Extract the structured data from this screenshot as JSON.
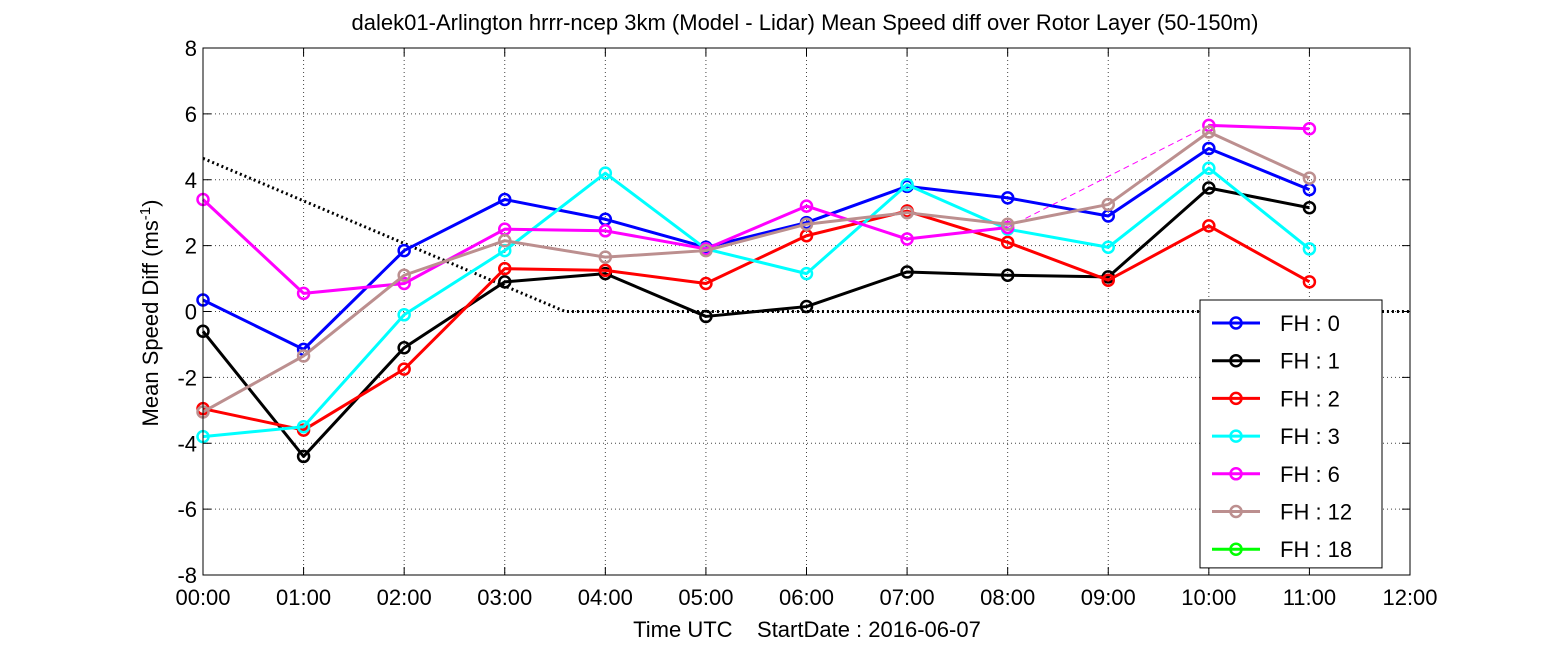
{
  "chart_data": {
    "type": "line",
    "title": "dalek01-Arlington hrrr-ncep 3km (Model - Lidar) Mean Speed diff over Rotor Layer (50-150m)",
    "xlabel": "Time UTC    StartDate : 2016-06-07",
    "ylabel_main": "Mean Speed Diff (ms",
    "ylabel_sup": "-1",
    "ylabel_end": ")",
    "ylim": [
      -8,
      8
    ],
    "yticks": [
      -8,
      -6,
      -4,
      -2,
      0,
      2,
      4,
      6,
      8
    ],
    "xlim": [
      0,
      12
    ],
    "xtick_labels": [
      "00:00",
      "01:00",
      "02:00",
      "03:00",
      "04:00",
      "05:00",
      "06:00",
      "07:00",
      "08:00",
      "09:00",
      "10:00",
      "11:00",
      "12:00"
    ],
    "grid": true,
    "legend_position": "bottom-right",
    "reference_line": {
      "x": [
        0,
        3.6,
        12
      ],
      "y": [
        4.65,
        0,
        0
      ],
      "style": "dotted",
      "color": "#000000"
    },
    "series": [
      {
        "name": "FH : 0",
        "color": "#0000ff",
        "x": [
          0,
          1,
          2,
          3,
          4,
          5,
          6,
          7,
          8,
          9,
          10,
          11
        ],
        "y": [
          0.35,
          -1.15,
          1.85,
          3.4,
          2.8,
          1.95,
          2.7,
          3.8,
          3.45,
          2.9,
          4.95,
          3.7
        ]
      },
      {
        "name": "FH : 1",
        "color": "#000000",
        "x": [
          0,
          1,
          2,
          3,
          4,
          5,
          6,
          7,
          8,
          9,
          10,
          11
        ],
        "y": [
          -0.6,
          -4.4,
          -1.1,
          0.9,
          1.15,
          -0.15,
          0.15,
          1.2,
          1.1,
          1.05,
          3.75,
          3.15
        ]
      },
      {
        "name": "FH : 2",
        "color": "#ff0000",
        "x": [
          0,
          1,
          2,
          3,
          4,
          5,
          6,
          7,
          8,
          9,
          10,
          11
        ],
        "y": [
          -2.95,
          -3.6,
          -1.75,
          1.3,
          1.25,
          0.85,
          2.3,
          3.05,
          2.1,
          0.95,
          2.6,
          0.9
        ]
      },
      {
        "name": "FH : 3",
        "color": "#00ffff",
        "x": [
          0,
          1,
          2,
          3,
          4,
          5,
          6,
          7,
          8,
          9,
          10,
          11
        ],
        "y": [
          -3.8,
          -3.5,
          -0.1,
          1.85,
          4.2,
          1.9,
          1.15,
          3.85,
          2.5,
          1.95,
          4.35,
          1.9
        ]
      },
      {
        "name": "FH : 6",
        "color": "#ff00ff",
        "x": [
          0,
          1,
          2,
          3,
          4,
          5,
          6,
          7,
          8,
          10,
          11
        ],
        "y": [
          3.4,
          0.55,
          0.85,
          2.5,
          2.45,
          1.9,
          3.2,
          2.2,
          2.55,
          5.65,
          5.55
        ],
        "dashed_gap": {
          "x": [
            8,
            10
          ],
          "y": [
            2.55,
            5.65
          ]
        }
      },
      {
        "name": "FH : 12",
        "color": "#bc8f8f",
        "x": [
          0,
          1,
          2,
          3,
          4,
          5,
          6,
          7,
          8,
          9,
          10,
          11
        ],
        "y": [
          -3.05,
          -1.35,
          1.1,
          2.15,
          1.65,
          1.85,
          2.65,
          3.0,
          2.65,
          3.25,
          5.45,
          4.05
        ]
      },
      {
        "name": "FH : 18",
        "color": "#00ff00",
        "x": [],
        "y": []
      }
    ]
  }
}
